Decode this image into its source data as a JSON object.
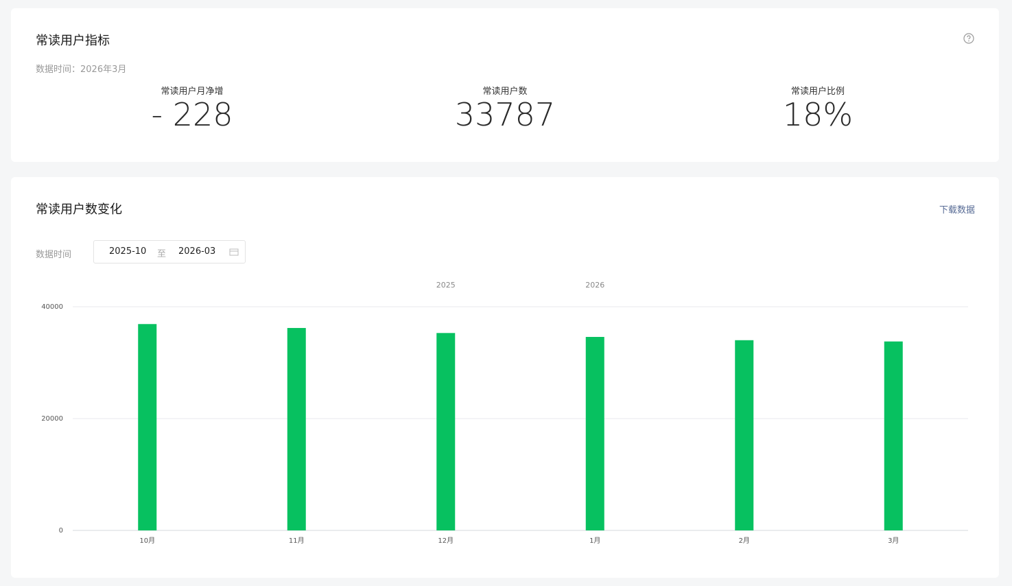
{
  "metrics_card": {
    "title": "常读用户指标",
    "data_time": "数据时间：2026年3月",
    "metrics": [
      {
        "label": "常读用户月净增",
        "value": "- 228"
      },
      {
        "label": "常读用户数",
        "value": "33787"
      },
      {
        "label": "常读用户比例",
        "value": "18%"
      }
    ]
  },
  "trend_card": {
    "title": "常读用户数变化",
    "download": "下载数据",
    "filter_label": "数据时间",
    "date_start": "2025-10",
    "date_separator": "至",
    "date_end": "2026-03"
  },
  "chart_data": {
    "type": "bar",
    "years": [
      "2025",
      "2026"
    ],
    "categories": [
      "10月",
      "11月",
      "12月",
      "1月",
      "2月",
      "3月"
    ],
    "values": [
      36900,
      36200,
      35300,
      34600,
      34015,
      33787
    ],
    "color": "#07c160",
    "ylim": [
      0,
      40000
    ],
    "yticks": [
      0,
      20000,
      40000
    ],
    "grid": true
  }
}
